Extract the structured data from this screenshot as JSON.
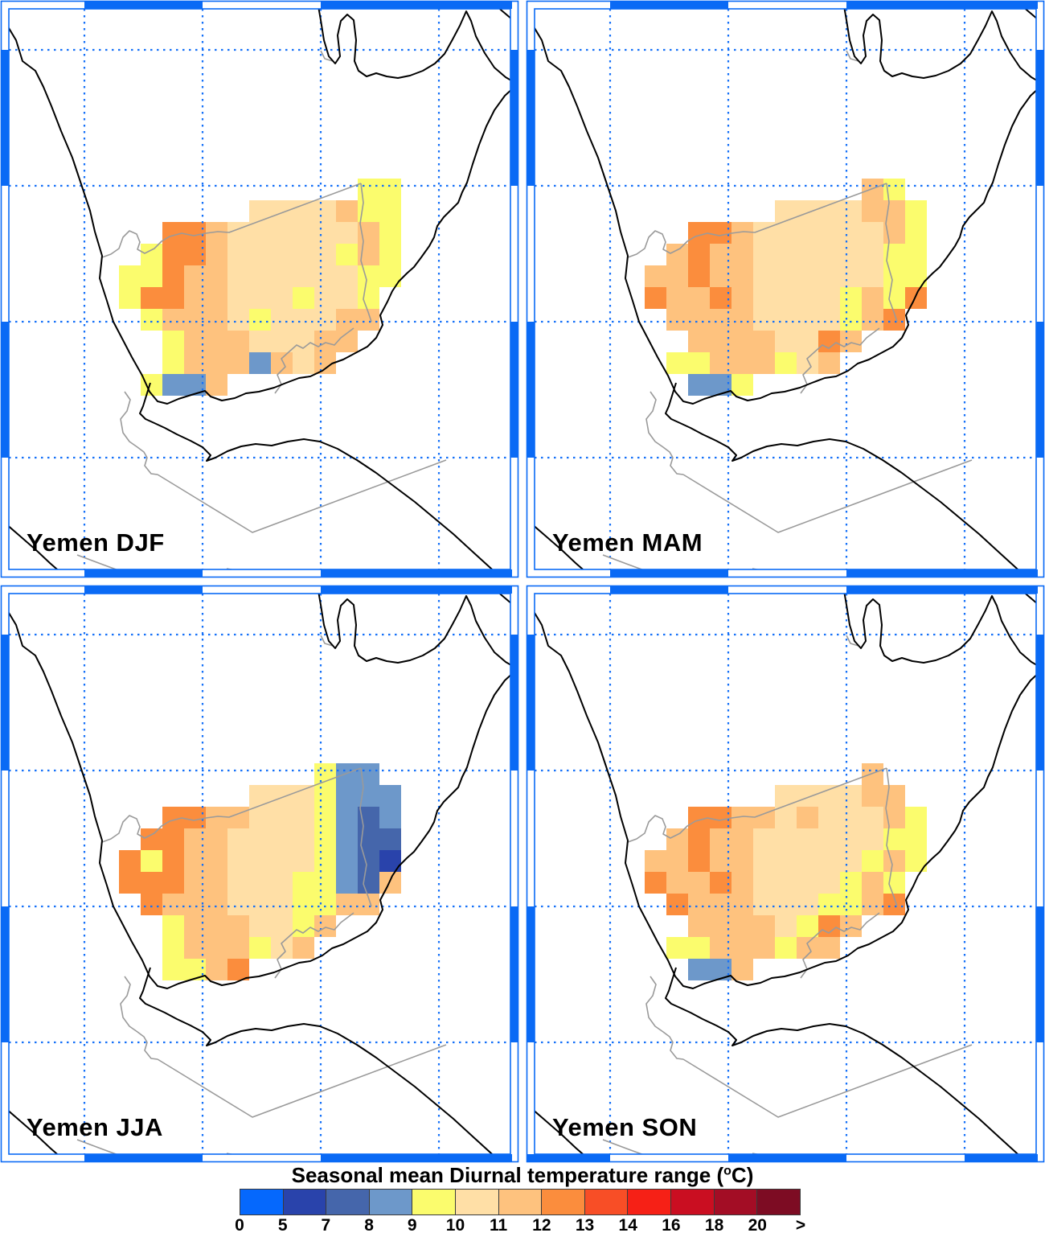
{
  "panels": [
    {
      "id": "djf",
      "label": "Yemen DJF",
      "grid": [
        "...........YY",
        "......CCCCPYY",
        "..OOPCCCCCCPY",
        ".YOOPCCCCCYPY",
        "YYOPPCCCCCCYY",
        "YOOPPCCCYCCY.",
        ".YPPPCYCCCPP.",
        "..YPPPCCCPP..",
        "..YPPPBPCP...",
        ".YBBP........"
      ]
    },
    {
      "id": "mam",
      "label": "Yemen MAM",
      "grid": [
        "..........PY.",
        "......CCCCPPY",
        "..OOPCCCCCCPY",
        ".POPPCCCCCCYY",
        "PPOPPCCCCCCYY",
        "OPPOPCCCCYPYO",
        ".PPPPCCCCYPO.",
        "..PPPPCCOP...",
        ".YYPPPYCP....",
        "..BBY........"
      ]
    },
    {
      "id": "jja",
      "label": "Yemen JJA",
      "grid": [
        ".........YBB.",
        "......CCCYBBB",
        "..OOPPCCCYBNB",
        ".OOPPCCCCYBNN",
        "OYOPPCCCCYBND",
        "OOOPPCCCYYBNP",
        ".OPPPCCCYYPP.",
        "..YPPPCCYP...",
        "..YPPPYCP....",
        "..YYPO......."
      ]
    },
    {
      "id": "son",
      "label": "Yemen SON",
      "grid": [
        "..........P..",
        "......CCCCPP.",
        "..OOPPCPCCCPY",
        ".POPPCCCCCCYY",
        "PPOPPCCCCCYPY",
        "OPPOPCCCCYPY.",
        ".OPPPCCCYYPO.",
        "..PPPPCYOP...",
        ".YYPPPYPP....",
        "..BBP........"
      ]
    }
  ],
  "legend_key": {
    "D": 1,
    "N": 2,
    "B": 3,
    "Y": 4,
    "C": 5,
    "P": 6,
    "O": 7
  },
  "colorbar": {
    "title_prefix": "Seasonal mean Diurnal temperature range (",
    "title_sup": "o",
    "title_suffix": "C)",
    "labels": [
      "0",
      "5",
      "7",
      "8",
      "9",
      "10",
      "11",
      "12",
      "13",
      "14",
      "16",
      "18",
      "20",
      ">"
    ],
    "colors": [
      "#0568fd",
      "#2943ab",
      "#4566ab",
      "#6d98ca",
      "#fbfc6d",
      "#ffdfa6",
      "#fec27e",
      "#fb8d3d",
      "#f84e26",
      "#f62016",
      "#ca0e21",
      "#a30d25",
      "#7d0c23"
    ]
  },
  "map_colors": {
    "frame_blue": "#0a6af5",
    "grid_blue": "#1470f8",
    "coastline": "#000000",
    "country_border": "#9a9a9a",
    "sea_land": "#ffffff"
  }
}
